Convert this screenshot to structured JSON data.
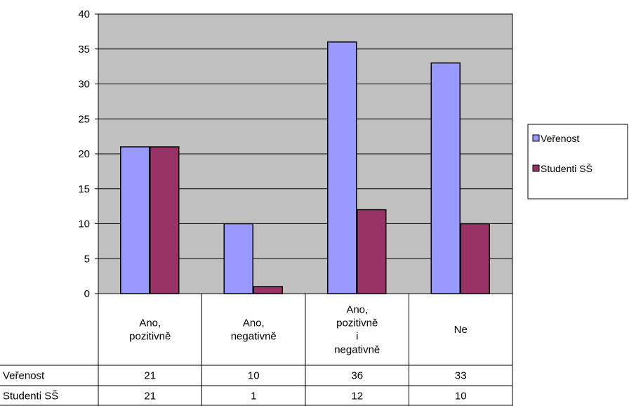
{
  "chart_data": {
    "type": "bar",
    "categories": [
      [
        "Ano,",
        "pozitivně"
      ],
      [
        "Ano,",
        "negativně"
      ],
      [
        "Ano,",
        "pozitivně",
        "i",
        "negativně"
      ],
      [
        "Ne"
      ]
    ],
    "series": [
      {
        "name": "Veřenost",
        "values": [
          21,
          10,
          36,
          33
        ],
        "color": "#9999ff"
      },
      {
        "name": "Studenti SŠ",
        "values": [
          21,
          1,
          12,
          10
        ],
        "color": "#993366"
      }
    ],
    "ylim": [
      0,
      40
    ],
    "yticks": [
      0,
      5,
      10,
      15,
      20,
      25,
      30,
      35,
      40
    ],
    "grid": true,
    "plot_background": "#c0c0c0",
    "legend": "right",
    "data_table": true
  }
}
